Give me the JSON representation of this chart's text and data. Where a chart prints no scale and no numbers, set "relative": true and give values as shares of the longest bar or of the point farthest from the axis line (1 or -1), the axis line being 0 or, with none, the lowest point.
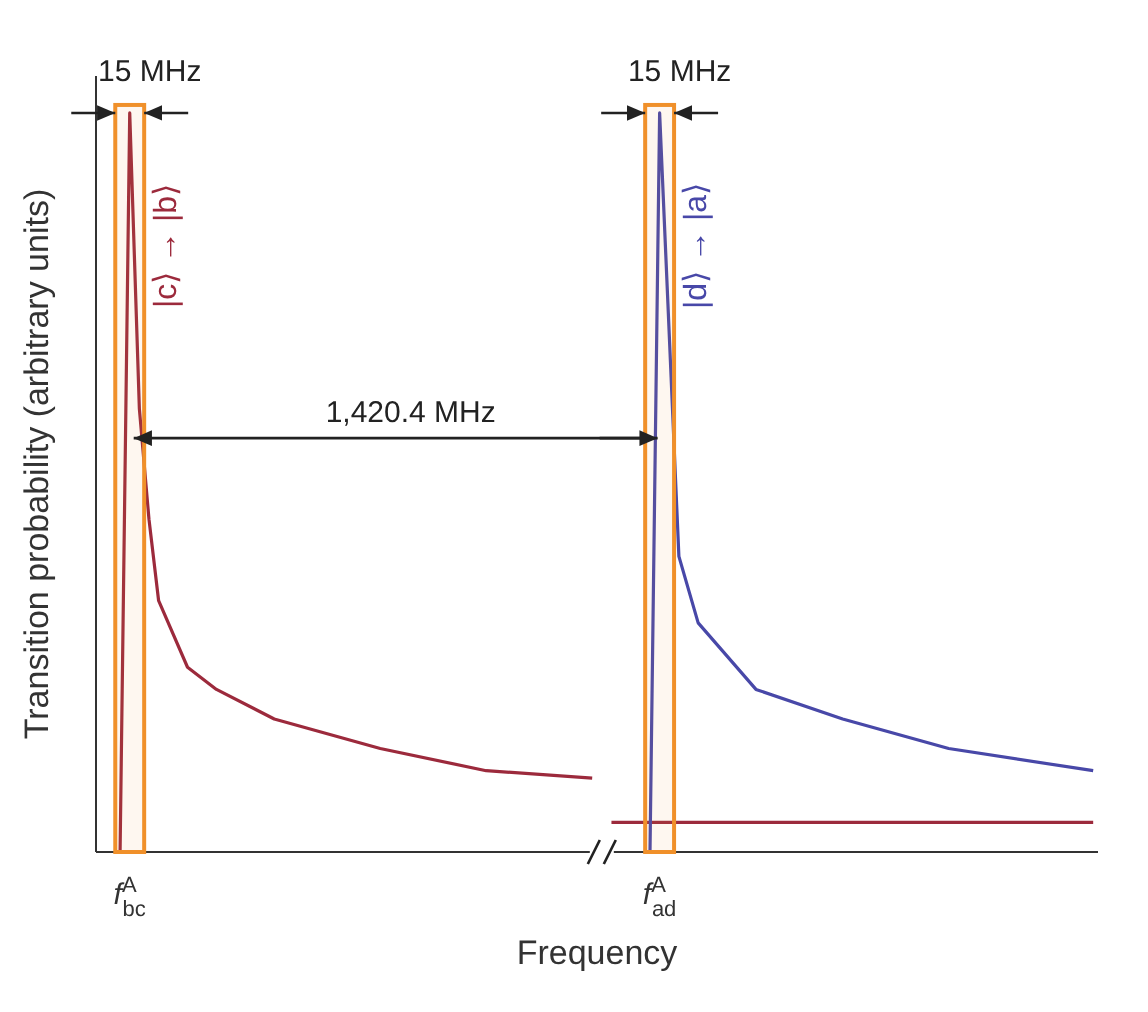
{
  "chart_data": {
    "type": "line",
    "relative": true,
    "xlabel": "Frequency",
    "ylabel": "Transition probability (arbitrary units)",
    "categories": [
      null,
      null,
      null,
      "f$^{A}$$_{bc}$",
      null,
      null,
      null,
      null,
      null,
      null,
      null,
      null,
      null,
      null,
      null,
      null,
      null,
      null,
      null,
      null,
      null,
      null,
      null,
      null,
      null,
      null,
      null,
      null,
      null,
      null,
      null,
      null,
      null,
      null,
      null,
      null,
      null,
      null,
      null,
      null,
      null,
      null,
      null,
      null,
      null,
      null,
      null,
      null,
      null,
      null,
      null,
      null,
      null,
      null,
      null,
      null,
      null,
      null,
      "f$^{A}$$_{ad}$",
      null,
      null,
      null,
      null,
      null,
      null,
      null,
      null,
      null,
      null,
      null,
      null,
      null,
      null,
      null,
      null,
      null,
      null,
      null,
      null,
      null,
      null,
      null,
      null,
      null,
      null,
      null,
      null,
      null,
      null,
      null,
      null,
      null,
      null,
      null,
      null,
      null,
      null,
      null,
      null,
      null,
      null,
      null,
      null,
      null
    ],
    "series": [
      {
        "name": "|c⟩ → |b⟩",
        "color": "#9c2a3c",
        "values": [
          null,
          null,
          0,
          1,
          0.6,
          0.45,
          0.34,
          null,
          null,
          0.25,
          null,
          null,
          0.22,
          null,
          null,
          null,
          null,
          null,
          0.18,
          null,
          null,
          null,
          null,
          null,
          null,
          null,
          null,
          null,
          null,
          0.14,
          null,
          null,
          null,
          null,
          null,
          null,
          null,
          null,
          null,
          null,
          0.11,
          null,
          null,
          null,
          null,
          null,
          null,
          null,
          null,
          null,
          null,
          0.1,
          null,
          null,
          null,
          null,
          null,
          null,
          null,
          null,
          null,
          null,
          null,
          null,
          null,
          null,
          null,
          null,
          null,
          null,
          null,
          null,
          null,
          null,
          null,
          null,
          null,
          null,
          null,
          null,
          null,
          null,
          null,
          null,
          null,
          null,
          null,
          null,
          null,
          null,
          null,
          null,
          null,
          null,
          null,
          null,
          null,
          null,
          null,
          null,
          null,
          null,
          null,
          null
        ]
      },
      {
        "color": "#9c2a3c",
        "values": [
          null,
          null,
          null,
          null,
          null,
          null,
          null,
          null,
          null,
          null,
          null,
          null,
          null,
          null,
          null,
          null,
          null,
          null,
          null,
          null,
          null,
          null,
          null,
          null,
          null,
          null,
          null,
          null,
          null,
          null,
          null,
          null,
          null,
          null,
          null,
          null,
          null,
          null,
          null,
          null,
          null,
          null,
          null,
          null,
          null,
          null,
          null,
          null,
          null,
          null,
          null,
          null,
          null,
          0.04,
          null,
          null,
          null,
          null,
          null,
          null,
          null,
          null,
          null,
          null,
          null,
          null,
          null,
          null,
          null,
          null,
          null,
          null,
          null,
          null,
          null,
          null,
          null,
          null,
          null,
          null,
          null,
          null,
          null,
          null,
          null,
          null,
          null,
          null,
          null,
          null,
          null,
          null,
          null,
          null,
          null,
          null,
          null,
          null,
          null,
          null,
          null,
          null,
          null,
          0.04
        ]
      },
      {
        "name": "|d⟩ → |a⟩",
        "color": "#4848a8",
        "values": [
          null,
          null,
          null,
          null,
          null,
          null,
          null,
          null,
          null,
          null,
          null,
          null,
          null,
          null,
          null,
          null,
          null,
          null,
          null,
          null,
          null,
          null,
          null,
          null,
          null,
          null,
          null,
          null,
          null,
          null,
          null,
          null,
          null,
          null,
          null,
          null,
          null,
          null,
          null,
          null,
          null,
          null,
          null,
          null,
          null,
          null,
          null,
          null,
          null,
          null,
          null,
          null,
          null,
          null,
          null,
          null,
          null,
          0,
          1,
          null,
          0.4,
          null,
          0.31,
          null,
          null,
          null,
          null,
          null,
          0.22,
          null,
          null,
          null,
          null,
          null,
          null,
          null,
          null,
          0.18,
          null,
          null,
          null,
          null,
          null,
          null,
          null,
          null,
          null,
          null,
          0.14,
          null,
          null,
          null,
          null,
          null,
          null,
          null,
          null,
          null,
          null,
          null,
          null,
          null,
          null,
          0.11
        ]
      }
    ],
    "annotations": [
      "15 MHz",
      "15 MHz",
      "1,420.4 MHz"
    ],
    "marker": "none",
    "line_style": "solid"
  }
}
